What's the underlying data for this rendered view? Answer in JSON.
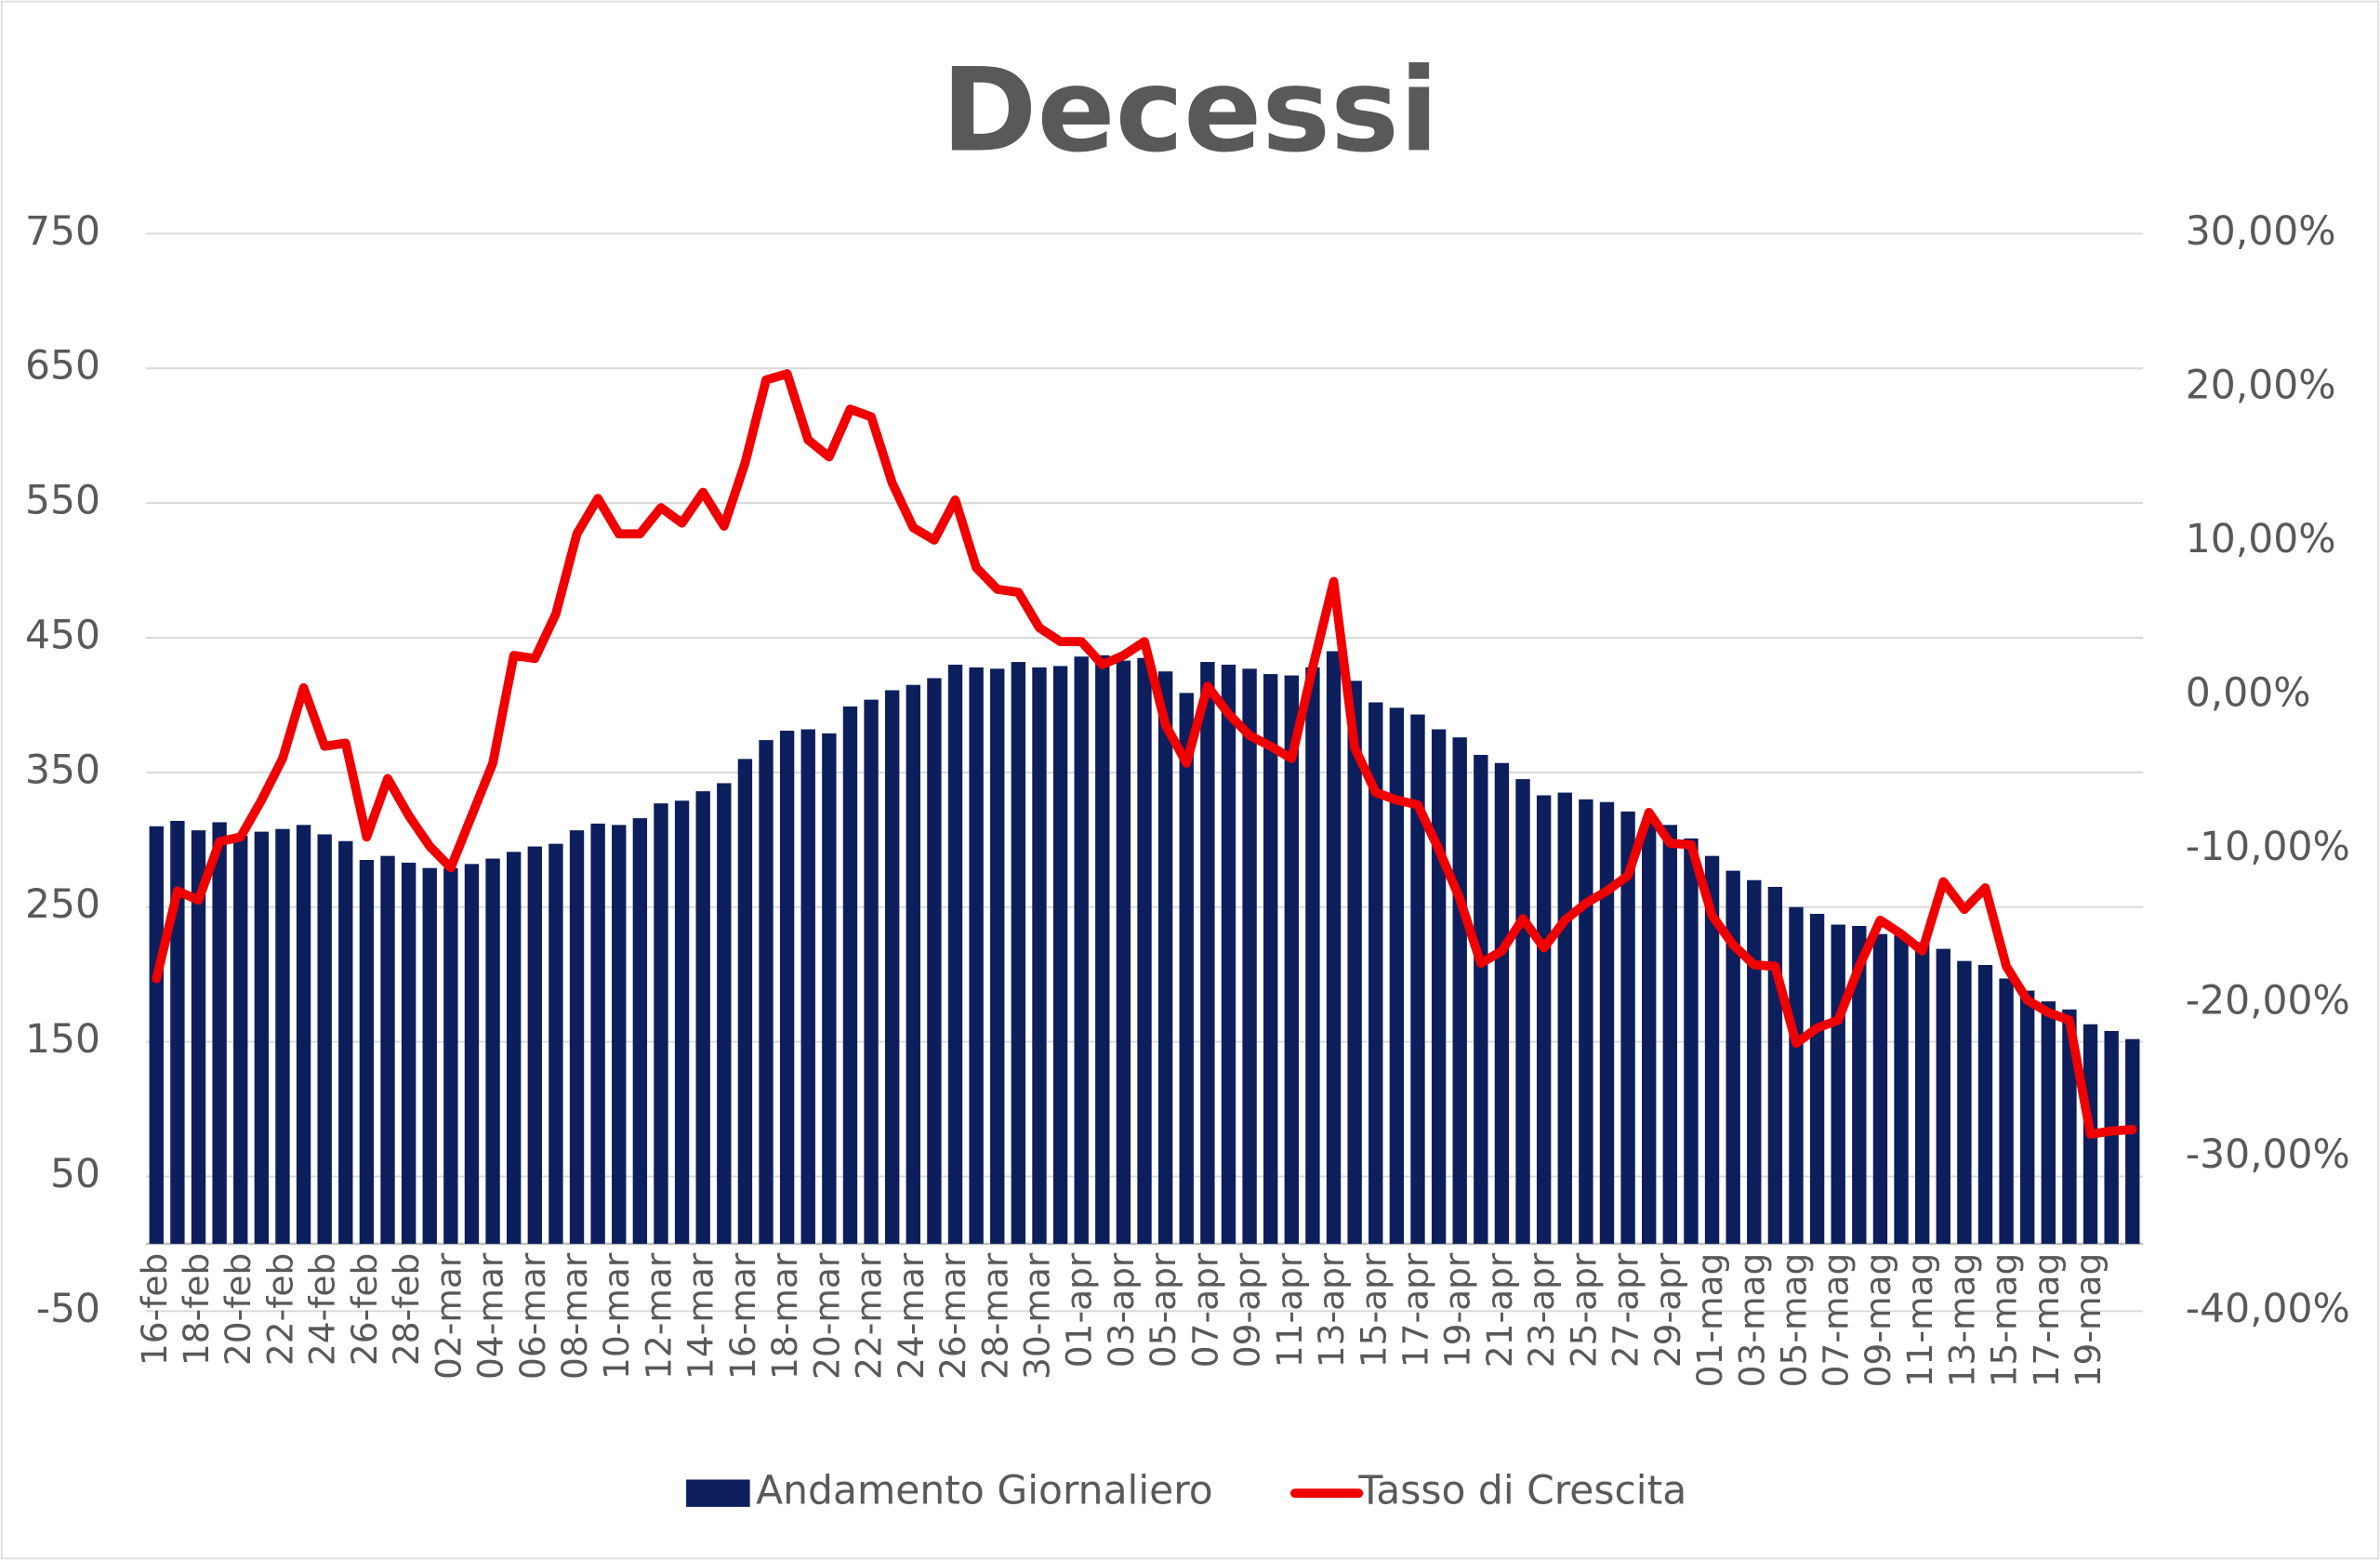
{
  "chart_data": {
    "type": "bar_line",
    "title": "Decessi",
    "categories": [
      "16-feb",
      null,
      "18-feb",
      null,
      "20-feb",
      null,
      "22-feb",
      null,
      "24-feb",
      null,
      "26-feb",
      null,
      "28-feb",
      null,
      "02-mar",
      null,
      "04-mar",
      null,
      "06-mar",
      null,
      "08-mar",
      null,
      "10-mar",
      null,
      "12-mar",
      null,
      "14-mar",
      null,
      "16-mar",
      null,
      "18-mar",
      null,
      "20-mar",
      null,
      "22-mar",
      null,
      "24-mar",
      null,
      "26-mar",
      null,
      "28-mar",
      null,
      "30-mar",
      null,
      "01-apr",
      null,
      "03-apr",
      null,
      "05-apr",
      null,
      "07-apr",
      null,
      "09-apr",
      null,
      "11-apr",
      null,
      "13-apr",
      null,
      "15-apr",
      null,
      "17-apr",
      null,
      "19-apr",
      null,
      "21-apr",
      null,
      "23-apr",
      null,
      "25-apr",
      null,
      "27-apr",
      null,
      "29-apr",
      null,
      "01-mag",
      null,
      "03-mag",
      null,
      "05-mag",
      null,
      "07-mag",
      null,
      "09-mag",
      null,
      "11-mag",
      null,
      "13-mag",
      null,
      "15-mag",
      null,
      "17-mag",
      null,
      "19-mag",
      null,
      null
    ],
    "series": [
      {
        "name": "Andamento Giornaliero",
        "type": "bar",
        "color": "#0c1f5c",
        "values": [
          310,
          314,
          307,
          313,
          303,
          306,
          308,
          311,
          304,
          299,
          285,
          288,
          283,
          279,
          279,
          282,
          286,
          291,
          295,
          297,
          307,
          312,
          311,
          316,
          327,
          329,
          336,
          342,
          360,
          374,
          381,
          382,
          379,
          399,
          404,
          411,
          415,
          420,
          430,
          428,
          427,
          432,
          428,
          429,
          436,
          437,
          433,
          435,
          425,
          409,
          432,
          430,
          427,
          423,
          422,
          428,
          440,
          418,
          402,
          398,
          393,
          382,
          376,
          363,
          357,
          345,
          333,
          335,
          330,
          328,
          321,
          316,
          311,
          301,
          288,
          277,
          270,
          265,
          250,
          245,
          237,
          236,
          230,
          229,
          224,
          219,
          210,
          207,
          197,
          188,
          180,
          174,
          163,
          158,
          152
        ]
      },
      {
        "name": "Tasso di Crescita",
        "type": "line",
        "axis": "y2",
        "color": "#f00000",
        "values": [
          -18.4,
          -12.7,
          -13.3,
          -9.5,
          -9.2,
          -6.8,
          -4.1,
          0.5,
          -3.3,
          -3.1,
          -9.2,
          -5.4,
          -7.8,
          -9.8,
          -11.2,
          -7.8,
          -4.4,
          2.6,
          2.4,
          5.3,
          10.5,
          12.8,
          10.5,
          10.5,
          12.2,
          11.2,
          13.2,
          11.0,
          15.1,
          20.5,
          20.9,
          16.6,
          15.5,
          18.6,
          18.1,
          13.8,
          10.9,
          10.1,
          12.7,
          8.3,
          6.9,
          6.7,
          4.4,
          3.5,
          3.5,
          2.0,
          2.6,
          3.5,
          -1.9,
          -4.4,
          0.6,
          -1.2,
          -2.6,
          -3.3,
          -4.1,
          1.8,
          7.4,
          -3.4,
          -6.3,
          -6.8,
          -7.1,
          -10.0,
          -13.2,
          -17.4,
          -16.6,
          -14.5,
          -16.4,
          -14.6,
          -13.5,
          -12.7,
          -11.7,
          -7.6,
          -9.6,
          -9.7,
          -14.3,
          -16.2,
          -17.5,
          -17.6,
          -22.6,
          -21.6,
          -21.1,
          -17.6,
          -14.6,
          -15.5,
          -16.6,
          -12.1,
          -13.9,
          -12.5,
          -17.6,
          -19.8,
          -20.6,
          -21.1,
          -28.5,
          -28.3,
          -28.2
        ]
      }
    ],
    "ylim": [
      -50,
      750
    ],
    "yticks": [
      -50,
      50,
      150,
      250,
      350,
      450,
      550,
      650,
      750
    ],
    "y2lim": [
      -40,
      30
    ],
    "y2ticks": [
      {
        "value": -40,
        "label": "-40,00%"
      },
      {
        "value": -30,
        "label": "-30,00%"
      },
      {
        "value": -20,
        "label": "-20,00%"
      },
      {
        "value": -10,
        "label": "-10,00%"
      },
      {
        "value": 0,
        "label": "0,00%"
      },
      {
        "value": 10,
        "label": "10,00%"
      },
      {
        "value": 20,
        "label": "20,00%"
      },
      {
        "value": 30,
        "label": "30,00%"
      }
    ],
    "grid": true,
    "legend": "bottom"
  }
}
